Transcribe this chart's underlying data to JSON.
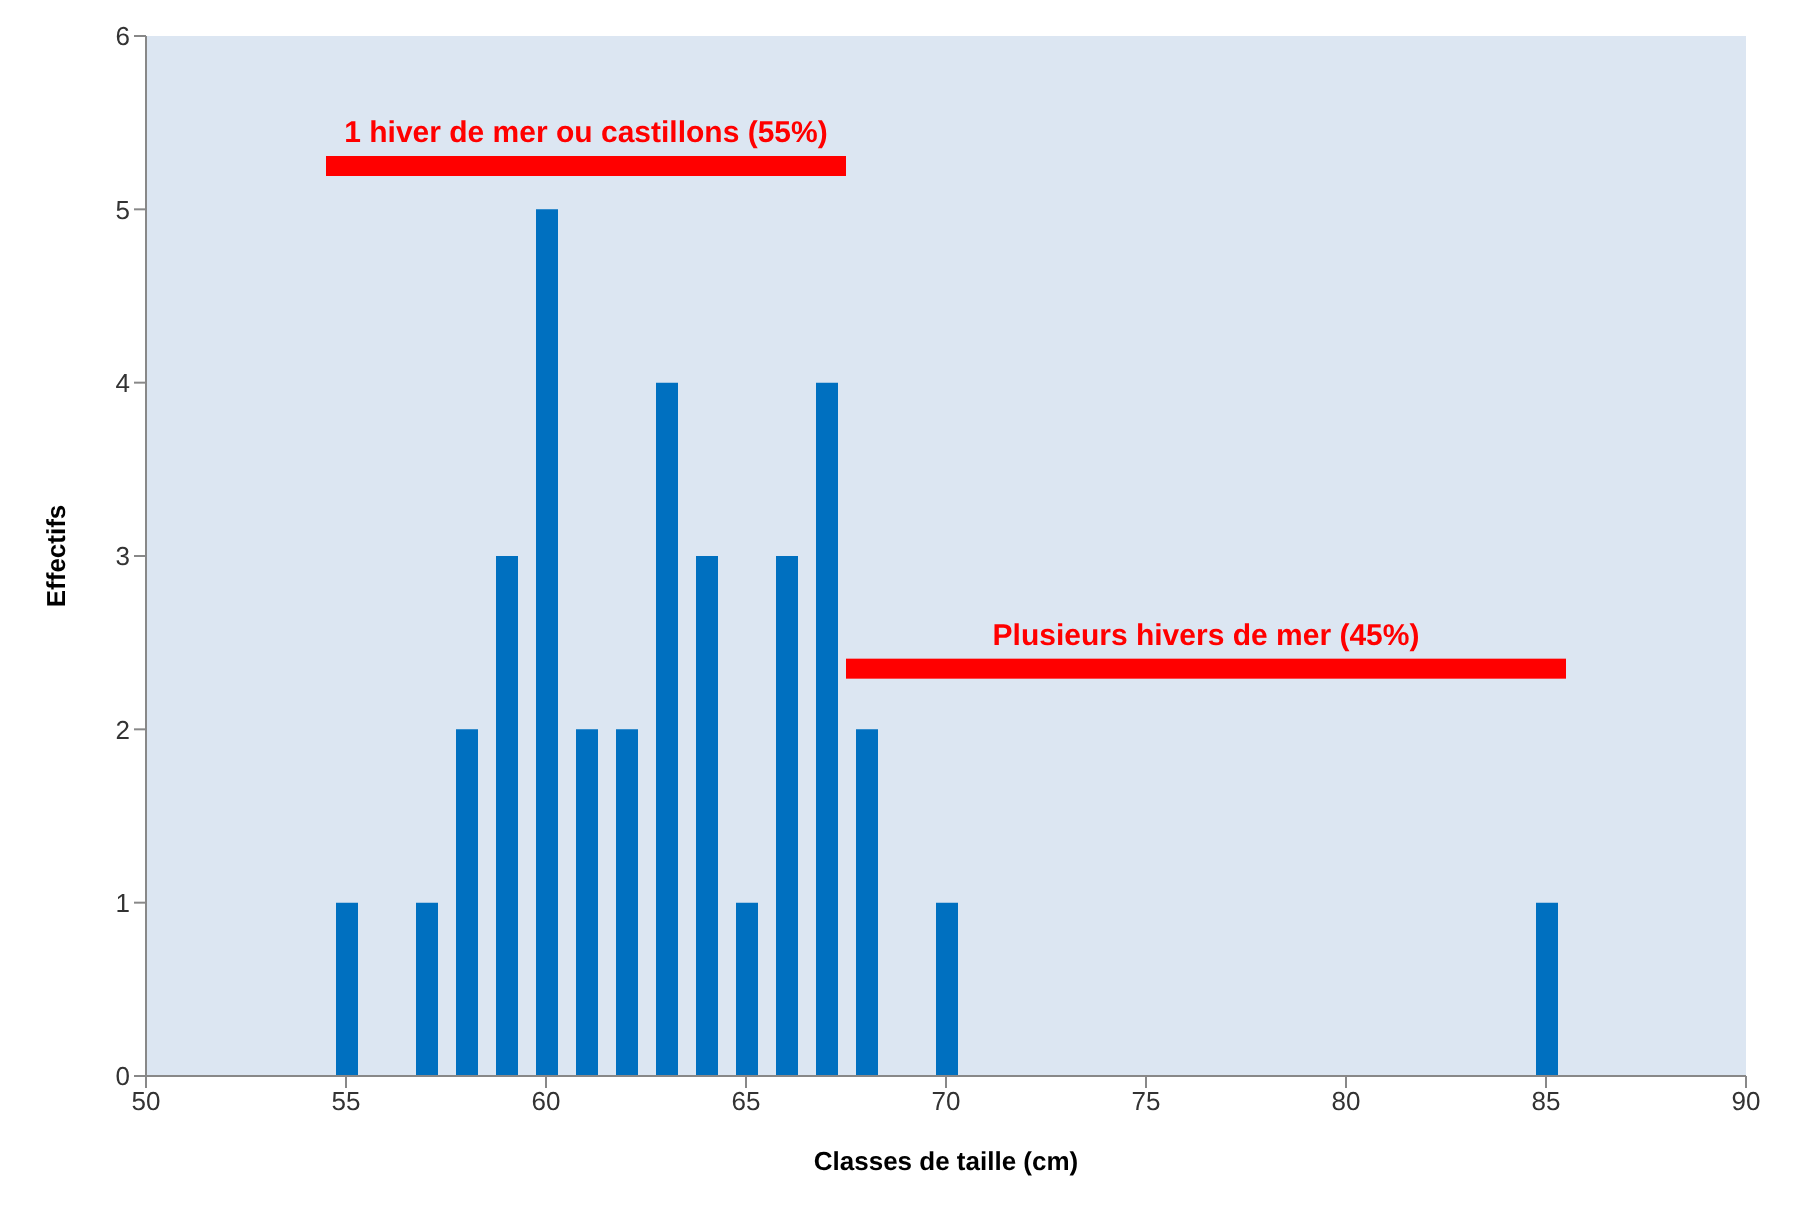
{
  "chart_data": {
    "type": "bar",
    "xlabel": "Classes de taille (cm)",
    "ylabel": "Effectifs",
    "x": [
      55,
      57,
      58,
      59,
      60,
      61,
      62,
      63,
      64,
      65,
      66,
      67,
      68,
      70,
      85
    ],
    "values": [
      1,
      1,
      2,
      3,
      5,
      2,
      2,
      4,
      3,
      1,
      3,
      4,
      2,
      1,
      1
    ],
    "color": "#0070c0",
    "xlim": [
      50,
      90
    ],
    "xticks": [
      50,
      55,
      60,
      65,
      70,
      75,
      80,
      85,
      90
    ],
    "ylim": [
      0,
      6
    ],
    "yticks": [
      0,
      1,
      2,
      3,
      4,
      5,
      6
    ],
    "grid": false,
    "legend": false,
    "annotations": [
      "1 hiver de mer ou castillons (55%)",
      "Plusieurs hivers de mer (45%)"
    ]
  }
}
